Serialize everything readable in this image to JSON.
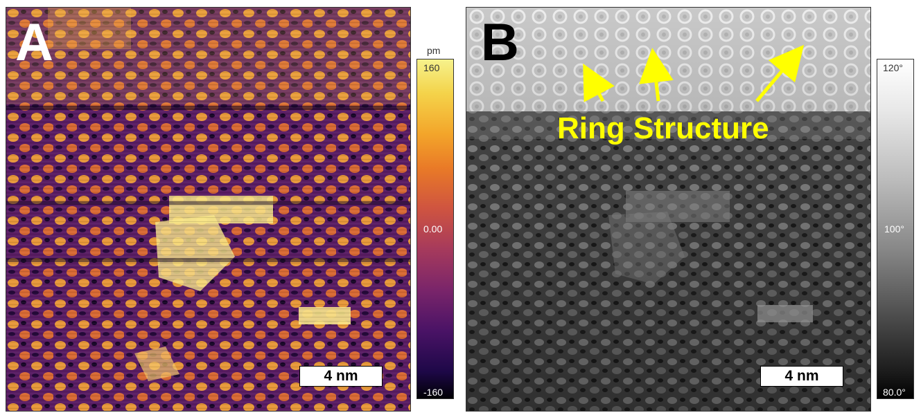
{
  "panel_a": {
    "letter": "A",
    "scale_bar": "4 nm",
    "colorbar": {
      "unit": "pm",
      "max": "160",
      "mid": "0.00",
      "min": "-160",
      "colors": [
        "#000004",
        "#4a1366",
        "#a63a5c",
        "#e97a27",
        "#f6f28c"
      ]
    }
  },
  "panel_b": {
    "letter": "B",
    "scale_bar": "4 nm",
    "annotation": "Ring Structure",
    "annotation_color": "#ffff00",
    "colorbar": {
      "max": "120°",
      "mid": "100°",
      "min": "80.0°",
      "colors": [
        "#000000",
        "#ffffff"
      ]
    }
  }
}
